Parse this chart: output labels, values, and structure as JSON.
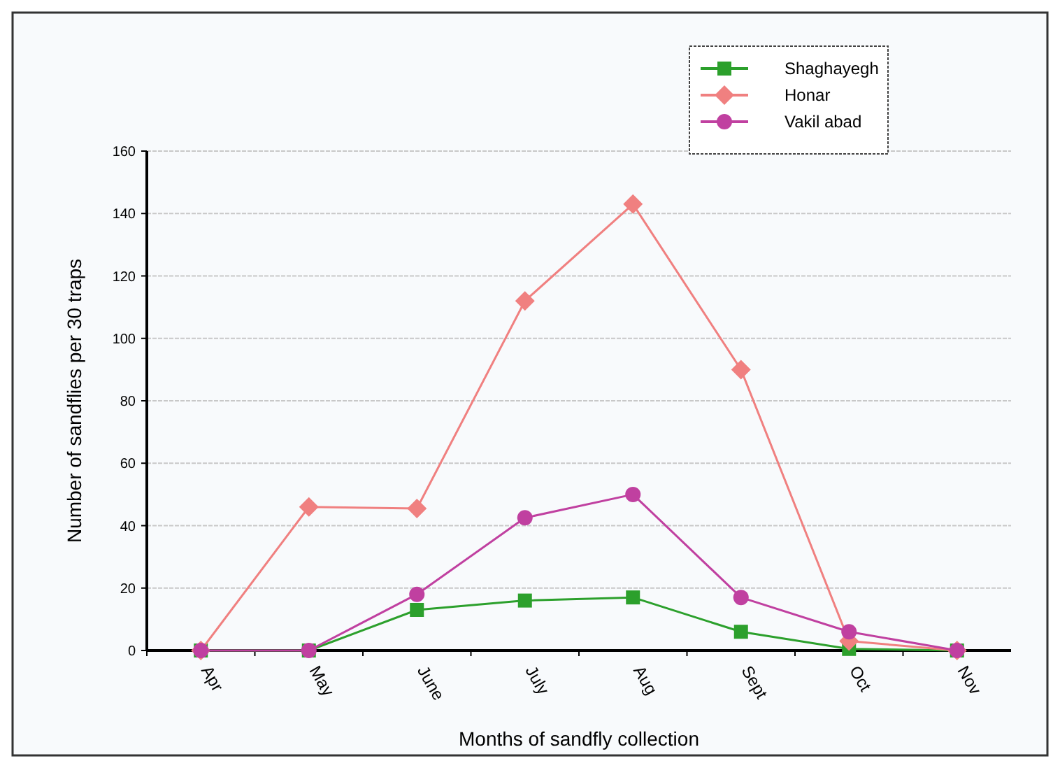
{
  "chart_data": {
    "type": "line",
    "xlabel": "Months of sandfly collection",
    "ylabel": "Number of sandflies per 30 traps",
    "categories": [
      "Apr",
      "May",
      "June",
      "July",
      "Aug",
      "Sept",
      "Oct",
      "Nov"
    ],
    "series": [
      {
        "name": "Shaghayegh",
        "color": "#2ca02c",
        "marker": "square",
        "values": [
          0,
          0,
          13,
          16,
          17,
          6,
          0.5,
          0
        ]
      },
      {
        "name": "Honar",
        "color": "#f08080",
        "marker": "diamond",
        "values": [
          0,
          46,
          45.5,
          112,
          143,
          90,
          3,
          0
        ]
      },
      {
        "name": "Vakil abad",
        "color": "#c040a0",
        "marker": "circle",
        "values": [
          0,
          0,
          18,
          42.5,
          50,
          17,
          6,
          0
        ]
      }
    ],
    "ylim": [
      0,
      160
    ],
    "yticks": [
      0,
      20,
      40,
      60,
      80,
      100,
      120,
      140,
      160
    ],
    "grid": "y",
    "legend": "top right"
  }
}
